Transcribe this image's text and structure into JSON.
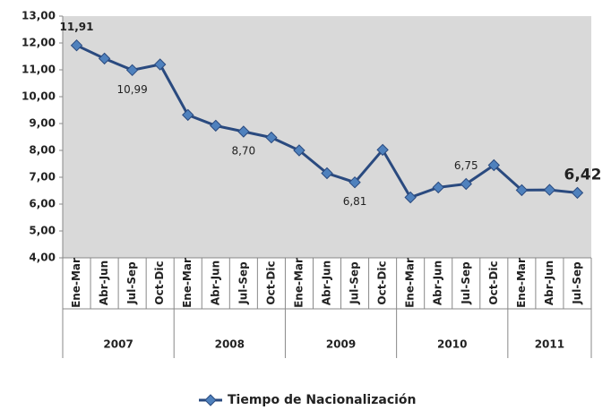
{
  "chart_data": {
    "type": "line",
    "groups": [
      {
        "name": "2007",
        "categories": [
          "Ene-Mar",
          "Abr-Jun",
          "Jul-Sep",
          "Oct-Dic"
        ]
      },
      {
        "name": "2008",
        "categories": [
          "Ene-Mar",
          "Abr-Jun",
          "Jul-Sep",
          "Oct-Dic"
        ]
      },
      {
        "name": "2009",
        "categories": [
          "Ene-Mar",
          "Abr-Jun",
          "Jul-Sep",
          "Oct-Dic"
        ]
      },
      {
        "name": "2010",
        "categories": [
          "Ene-Mar",
          "Abr-Jun",
          "Jul-Sep",
          "Oct-Dic"
        ]
      },
      {
        "name": "2011",
        "categories": [
          "Ene-Mar",
          "Abr-Jun",
          "Jul-Sep"
        ]
      }
    ],
    "series": [
      {
        "name": "Tiempo de Nacionalización",
        "color": "#2a4a7f",
        "marker_color": "#4f81bd",
        "values": [
          11.91,
          11.42,
          10.99,
          11.2,
          9.32,
          8.92,
          8.7,
          8.48,
          8.0,
          7.15,
          6.81,
          8.02,
          6.25,
          6.62,
          6.75,
          7.45,
          6.52,
          6.53,
          6.42
        ],
        "value_labels": [
          "11,91",
          null,
          "10,99",
          null,
          null,
          null,
          "8,70",
          null,
          null,
          null,
          "6,81",
          null,
          null,
          null,
          "6,75",
          null,
          null,
          null,
          "6,42"
        ]
      }
    ],
    "ylim": [
      4,
      13
    ],
    "yticks": [
      {
        "value": 4,
        "label": "4,00"
      },
      {
        "value": 5,
        "label": "5,00"
      },
      {
        "value": 6,
        "label": "6,00"
      },
      {
        "value": 7,
        "label": "7,00"
      },
      {
        "value": 8,
        "label": "8,00"
      },
      {
        "value": 9,
        "label": "9,00"
      },
      {
        "value": 10,
        "label": "10,00"
      },
      {
        "value": 11,
        "label": "11,00"
      },
      {
        "value": 12,
        "label": "12,00"
      },
      {
        "value": 13,
        "label": "13,00"
      }
    ],
    "legend": "bottom"
  }
}
